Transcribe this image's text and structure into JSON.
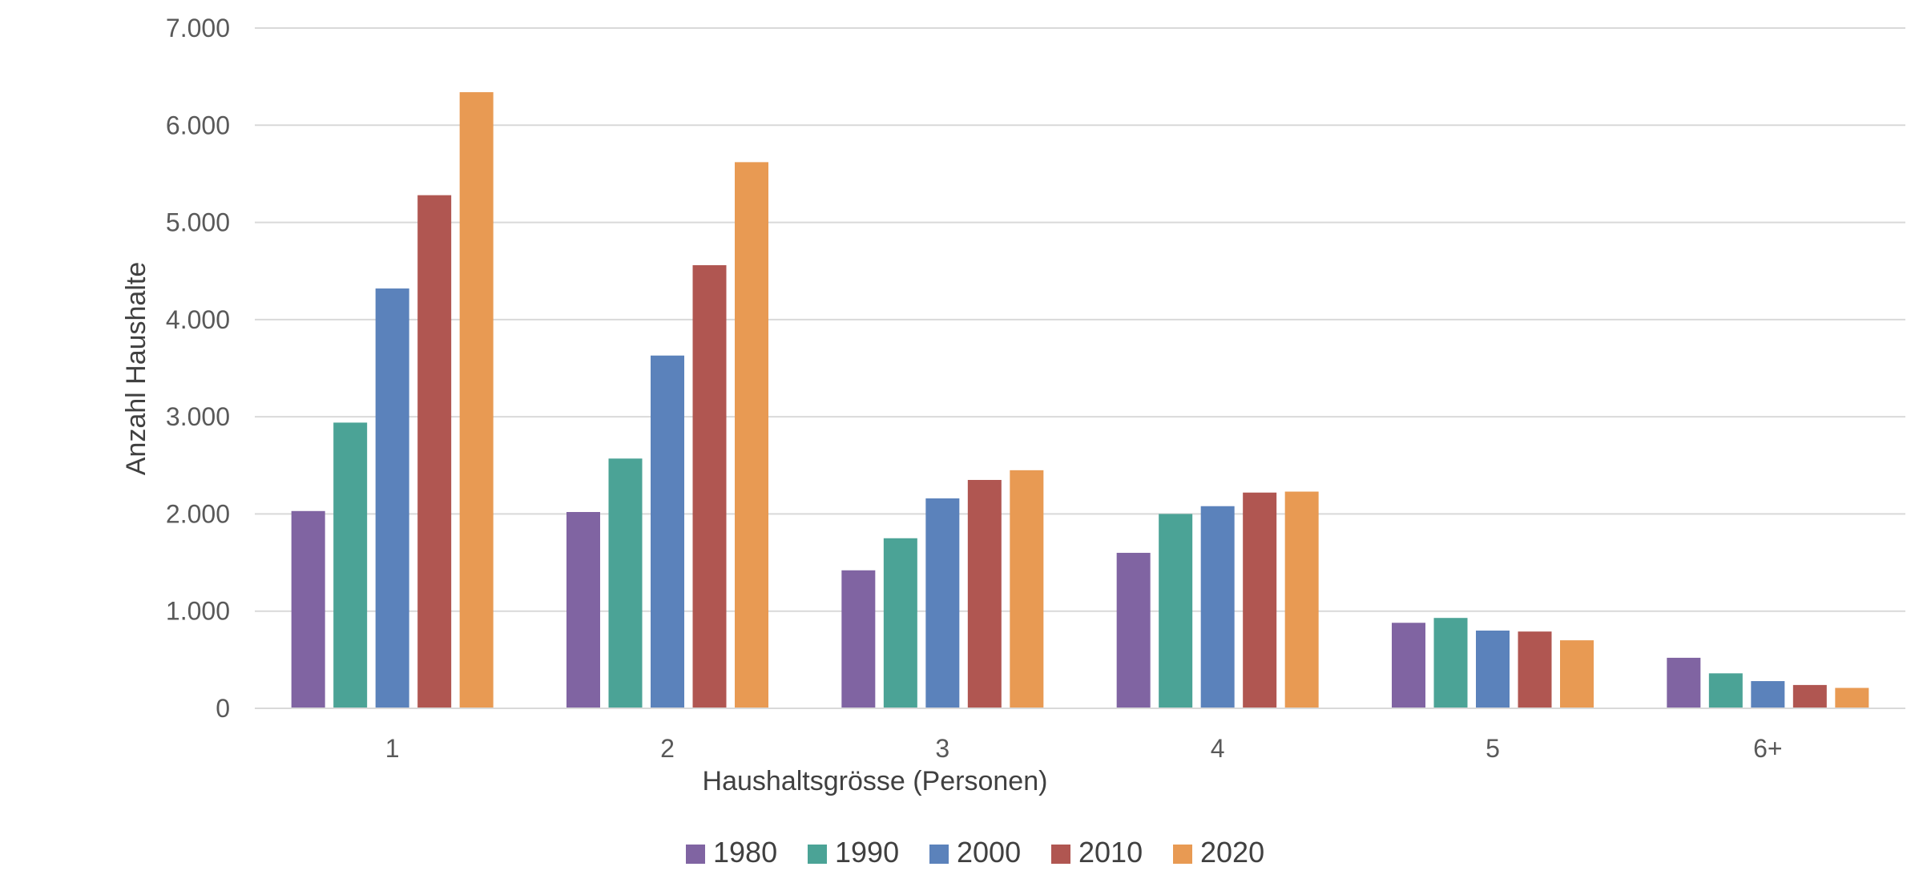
{
  "chart_data": {
    "type": "bar",
    "title": "",
    "xlabel": "Haushaltsgrösse (Personen)",
    "ylabel": "Anzahl Haushalte",
    "categories": [
      "1",
      "2",
      "3",
      "4",
      "5",
      "6+"
    ],
    "ylim": [
      0,
      7000
    ],
    "yticks": [
      0,
      1000,
      2000,
      3000,
      4000,
      5000,
      6000,
      7000
    ],
    "ytick_labels": [
      "0",
      "1.000",
      "2.000",
      "3.000",
      "4.000",
      "5.000",
      "6.000",
      "7.000"
    ],
    "grid": true,
    "legend_position": "bottom",
    "series": [
      {
        "name": "1980",
        "color": "#8064A2",
        "values": [
          2030,
          2020,
          1420,
          1600,
          880,
          520
        ]
      },
      {
        "name": "1990",
        "color": "#4BA396",
        "values": [
          2940,
          2570,
          1750,
          2000,
          930,
          360
        ]
      },
      {
        "name": "2000",
        "color": "#5B82BB",
        "values": [
          4320,
          3630,
          2160,
          2080,
          800,
          280
        ]
      },
      {
        "name": "2010",
        "color": "#B05651",
        "values": [
          5280,
          4560,
          2350,
          2220,
          790,
          240
        ]
      },
      {
        "name": "2020",
        "color": "#E89A53",
        "values": [
          6340,
          5620,
          2450,
          2230,
          700,
          210
        ]
      }
    ]
  }
}
